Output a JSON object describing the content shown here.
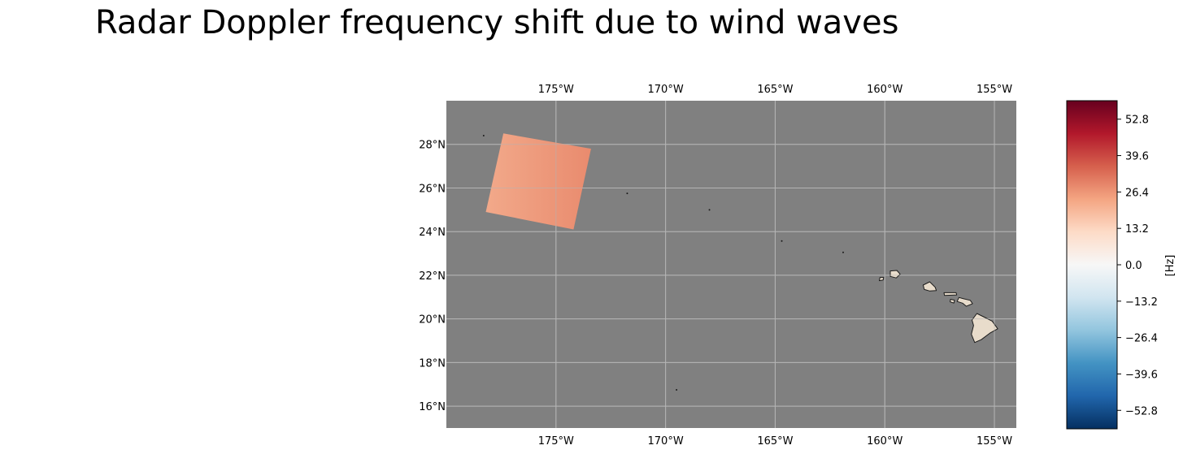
{
  "title": "Radar Doppler frequency shift due to wind waves",
  "map": {
    "background_color": "#808080",
    "grid_color": "#b4b4b4",
    "land_color": "#e8dccb",
    "coastline_color": "#1a1a1a",
    "lon_range": [
      -180,
      -154
    ],
    "lat_range": [
      15,
      30
    ],
    "lon_ticks": [
      -175,
      -170,
      -165,
      -160,
      -155
    ],
    "lat_ticks": [
      16,
      18,
      20,
      22,
      24,
      26,
      28
    ],
    "lon_tick_labels": [
      "175°W",
      "170°W",
      "165°W",
      "160°W",
      "155°W"
    ],
    "lat_tick_labels": [
      "16°N",
      "18°N",
      "20°N",
      "22°N",
      "24°N",
      "26°N",
      "28°N"
    ],
    "swath": {
      "corners": [
        [
          -177.4,
          28.5
        ],
        [
          -173.4,
          27.8
        ],
        [
          -174.2,
          24.1
        ],
        [
          -178.2,
          24.9
        ]
      ],
      "value_range_hz": [
        20,
        32
      ],
      "colors": [
        "#f2a98a",
        "#e98b6e"
      ]
    },
    "islands": [
      {
        "name": "hawaii",
        "outline": [
          [
            -155.8,
            20.25
          ],
          [
            -155.5,
            20.1
          ],
          [
            -155.1,
            19.9
          ],
          [
            -154.85,
            19.55
          ],
          [
            -155.2,
            19.35
          ],
          [
            -155.6,
            19.05
          ],
          [
            -155.9,
            18.92
          ],
          [
            -156.05,
            19.3
          ],
          [
            -155.95,
            19.7
          ],
          [
            -156.02,
            19.95
          ]
        ]
      },
      {
        "name": "maui",
        "outline": [
          [
            -156.62,
            20.98
          ],
          [
            -156.4,
            20.92
          ],
          [
            -156.1,
            20.85
          ],
          [
            -156.0,
            20.7
          ],
          [
            -156.28,
            20.58
          ],
          [
            -156.45,
            20.72
          ],
          [
            -156.7,
            20.8
          ]
        ]
      },
      {
        "name": "molokai",
        "outline": [
          [
            -157.3,
            21.2
          ],
          [
            -156.75,
            21.2
          ],
          [
            -156.72,
            21.1
          ],
          [
            -157.28,
            21.08
          ]
        ]
      },
      {
        "name": "lanai",
        "outline": [
          [
            -157.0,
            20.9
          ],
          [
            -156.82,
            20.86
          ],
          [
            -156.85,
            20.73
          ],
          [
            -157.02,
            20.78
          ]
        ]
      },
      {
        "name": "oahu",
        "outline": [
          [
            -158.25,
            21.55
          ],
          [
            -157.95,
            21.7
          ],
          [
            -157.7,
            21.45
          ],
          [
            -157.65,
            21.3
          ],
          [
            -157.95,
            21.28
          ],
          [
            -158.2,
            21.35
          ]
        ]
      },
      {
        "name": "kauai",
        "outline": [
          [
            -159.75,
            22.2
          ],
          [
            -159.45,
            22.22
          ],
          [
            -159.3,
            22.05
          ],
          [
            -159.48,
            21.88
          ],
          [
            -159.75,
            21.95
          ]
        ]
      },
      {
        "name": "niihau",
        "outline": [
          [
            -160.22,
            21.9
          ],
          [
            -160.05,
            21.9
          ],
          [
            -160.08,
            21.78
          ],
          [
            -160.25,
            21.75
          ]
        ]
      }
    ],
    "islets": [
      [
        -178.3,
        28.4
      ],
      [
        -177.35,
        28.2
      ],
      [
        -174.0,
        26.05
      ],
      [
        -171.75,
        25.75
      ],
      [
        -168.0,
        25.0
      ],
      [
        -164.7,
        23.57
      ],
      [
        -161.9,
        23.05
      ],
      [
        -169.5,
        16.75
      ]
    ]
  },
  "colorbar": {
    "label": "[Hz]",
    "vmin": -59.5,
    "vmax": 59.5,
    "ticks": [
      52.8,
      39.6,
      26.4,
      13.2,
      0.0,
      -13.2,
      -26.4,
      -39.6,
      -52.8
    ],
    "tick_labels": [
      "52.8",
      "39.6",
      "26.4",
      "13.2",
      "0.0",
      "−13.2",
      "−26.4",
      "−39.6",
      "−52.8"
    ],
    "colors": [
      "#67001f",
      "#b2182b",
      "#d6604d",
      "#f4a582",
      "#fddbc7",
      "#f7f7f7",
      "#d1e5f0",
      "#92c5de",
      "#4393c3",
      "#2166ac",
      "#053061"
    ]
  }
}
